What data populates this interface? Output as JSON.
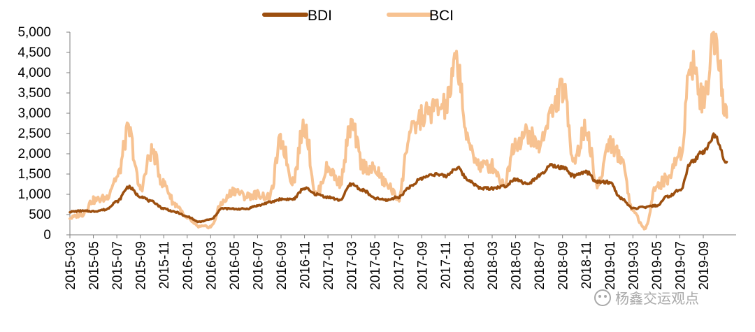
{
  "chart_data": {
    "type": "line",
    "title": "",
    "xlabel": "",
    "ylabel": "",
    "ylim": [
      0,
      5000
    ],
    "yticks": [
      0,
      500,
      1000,
      1500,
      2000,
      2500,
      3000,
      3500,
      4000,
      4500,
      5000
    ],
    "ytick_labels": [
      "0",
      "500",
      "1,000",
      "1,500",
      "2,000",
      "2,500",
      "3,000",
      "3,500",
      "4,000",
      "4,500",
      "5,000"
    ],
    "xticks": [
      "2015-03",
      "2015-05",
      "2015-07",
      "2015-09",
      "2015-11",
      "2016-01",
      "2016-03",
      "2016-05",
      "2016-07",
      "2016-09",
      "2016-11",
      "2017-01",
      "2017-03",
      "2017-05",
      "2017-07",
      "2017-09",
      "2017-11",
      "2018-01",
      "2018-03",
      "2018-05",
      "2018-07",
      "2018-09",
      "2018-11",
      "2019-01",
      "2019-03",
      "2019-05",
      "2019-07",
      "2019-09"
    ],
    "x_start": "2015-03",
    "x_end": "2019-11",
    "legend_position": "top-center",
    "grid": false,
    "series": [
      {
        "name": "BDI",
        "color": "#9c4f0f",
        "x": [
          "2015-03",
          "2015-04",
          "2015-05",
          "2015-06",
          "2015-07",
          "2015-08",
          "2015-09",
          "2015-10",
          "2015-11",
          "2015-12",
          "2016-01",
          "2016-02",
          "2016-03",
          "2016-04",
          "2016-05",
          "2016-06",
          "2016-07",
          "2016-08",
          "2016-09",
          "2016-10",
          "2016-11",
          "2016-12",
          "2017-01",
          "2017-02",
          "2017-03",
          "2017-04",
          "2017-05",
          "2017-06",
          "2017-07",
          "2017-08",
          "2017-09",
          "2017-10",
          "2017-11",
          "2017-12",
          "2018-01",
          "2018-02",
          "2018-03",
          "2018-04",
          "2018-05",
          "2018-06",
          "2018-07",
          "2018-08",
          "2018-09",
          "2018-10",
          "2018-11",
          "2018-12",
          "2019-01",
          "2019-02",
          "2019-03",
          "2019-04",
          "2019-05",
          "2019-06",
          "2019-07",
          "2019-08",
          "2019-09",
          "2019-10",
          "2019-11"
        ],
        "values": [
          570,
          590,
          580,
          620,
          820,
          1180,
          950,
          820,
          650,
          560,
          450,
          320,
          380,
          650,
          640,
          640,
          720,
          800,
          880,
          880,
          1150,
          1000,
          930,
          860,
          1250,
          1100,
          900,
          860,
          930,
          1180,
          1400,
          1500,
          1450,
          1650,
          1350,
          1150,
          1150,
          1200,
          1380,
          1250,
          1450,
          1700,
          1650,
          1450,
          1550,
          1300,
          1300,
          900,
          650,
          680,
          720,
          950,
          1100,
          1800,
          2050,
          2450,
          1800
        ]
      },
      {
        "name": "BCI",
        "color": "#f7c291",
        "x": [
          "2015-03",
          "2015-04",
          "2015-05",
          "2015-06",
          "2015-07",
          "2015-08",
          "2015-09",
          "2015-10",
          "2015-11",
          "2015-12",
          "2016-01",
          "2016-02",
          "2016-03",
          "2016-04",
          "2016-05",
          "2016-06",
          "2016-07",
          "2016-08",
          "2016-09",
          "2016-10",
          "2016-11",
          "2016-12",
          "2017-01",
          "2017-02",
          "2017-03",
          "2017-04",
          "2017-05",
          "2017-06",
          "2017-07",
          "2017-08",
          "2017-09",
          "2017-10",
          "2017-11",
          "2017-12",
          "2018-01",
          "2018-02",
          "2018-03",
          "2018-04",
          "2018-05",
          "2018-06",
          "2018-07",
          "2018-08",
          "2018-09",
          "2018-10",
          "2018-11",
          "2018-12",
          "2019-01",
          "2019-02",
          "2019-03",
          "2019-04",
          "2019-05",
          "2019-06",
          "2019-07",
          "2019-08",
          "2019-09",
          "2019-10",
          "2019-11"
        ],
        "values": [
          420,
          500,
          850,
          900,
          1400,
          2550,
          1150,
          2050,
          1250,
          750,
          400,
          200,
          200,
          800,
          1100,
          950,
          1000,
          920,
          2300,
          1350,
          2700,
          1000,
          1650,
          1300,
          2700,
          1700,
          1600,
          1250,
          900,
          2500,
          2900,
          3100,
          3150,
          4250,
          2200,
          1700,
          1700,
          1250,
          2300,
          2500,
          2200,
          3000,
          3600,
          1900,
          2600,
          1200,
          2300,
          1900,
          600,
          150,
          1200,
          1400,
          2000,
          4300,
          3300,
          5000,
          2900
        ]
      }
    ],
    "watermark": "杨鑫交运观点"
  }
}
